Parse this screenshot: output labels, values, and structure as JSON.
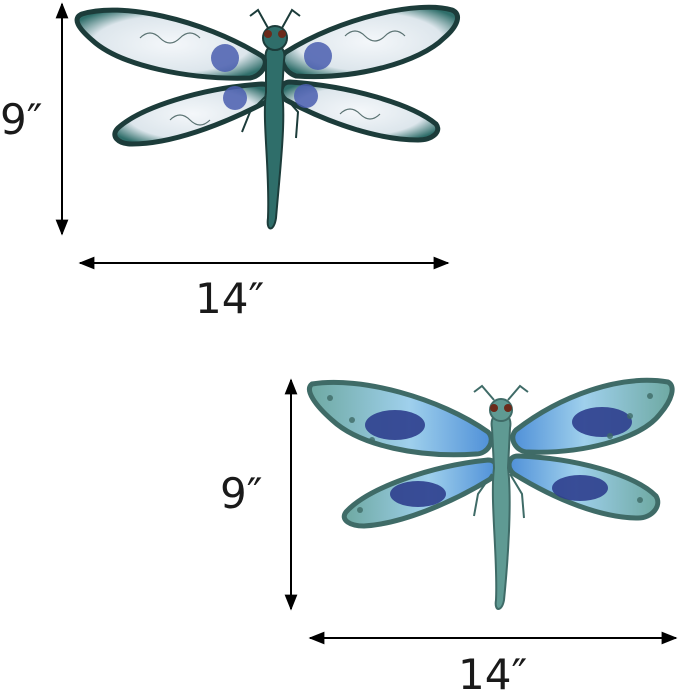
{
  "product_1": {
    "height_label": "9″",
    "width_label": "14″",
    "colors": {
      "body": "#2f6e6a",
      "edge": "#1c3c3a",
      "glass": "#e8eef2",
      "accent": "#4b5fb0"
    }
  },
  "product_2": {
    "height_label": "9″",
    "width_label": "14″",
    "colors": {
      "body": "#5f9a93",
      "edge": "#3f6b67",
      "glass": "#8fc6e6",
      "accent": "#2e3f8e"
    }
  },
  "colors": {
    "dimension_line": "#000000"
  }
}
